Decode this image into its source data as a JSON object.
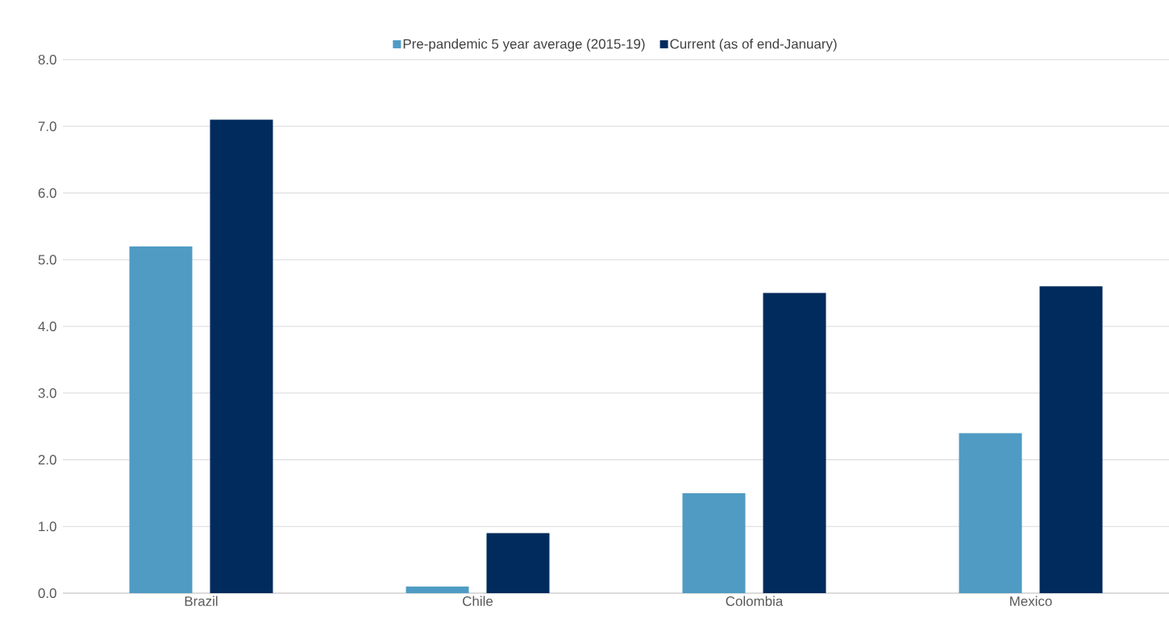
{
  "chart_data": {
    "type": "bar",
    "categories": [
      "Brazil",
      "Chile",
      "Colombia",
      "Mexico"
    ],
    "series": [
      {
        "name": "Pre-pandemic 5 year average (2015-19)",
        "color": "#4f9bc3",
        "values": [
          5.2,
          0.1,
          1.5,
          2.4
        ]
      },
      {
        "name": "Current (as of end-January)",
        "color": "#002b5c",
        "values": [
          7.1,
          0.9,
          4.5,
          4.6
        ]
      }
    ],
    "ylim": [
      0,
      8
    ],
    "yticks": [
      {
        "value": 0,
        "label": "0.0"
      },
      {
        "value": 1,
        "label": "1.0"
      },
      {
        "value": 2,
        "label": "2.0"
      },
      {
        "value": 3,
        "label": "3.0"
      },
      {
        "value": 4,
        "label": "4.0"
      },
      {
        "value": 5,
        "label": "5.0"
      },
      {
        "value": 6,
        "label": "6.0"
      },
      {
        "value": 7,
        "label": "7.0"
      },
      {
        "value": 8,
        "label": "8.0"
      }
    ],
    "grid": "y",
    "legend": "top"
  }
}
